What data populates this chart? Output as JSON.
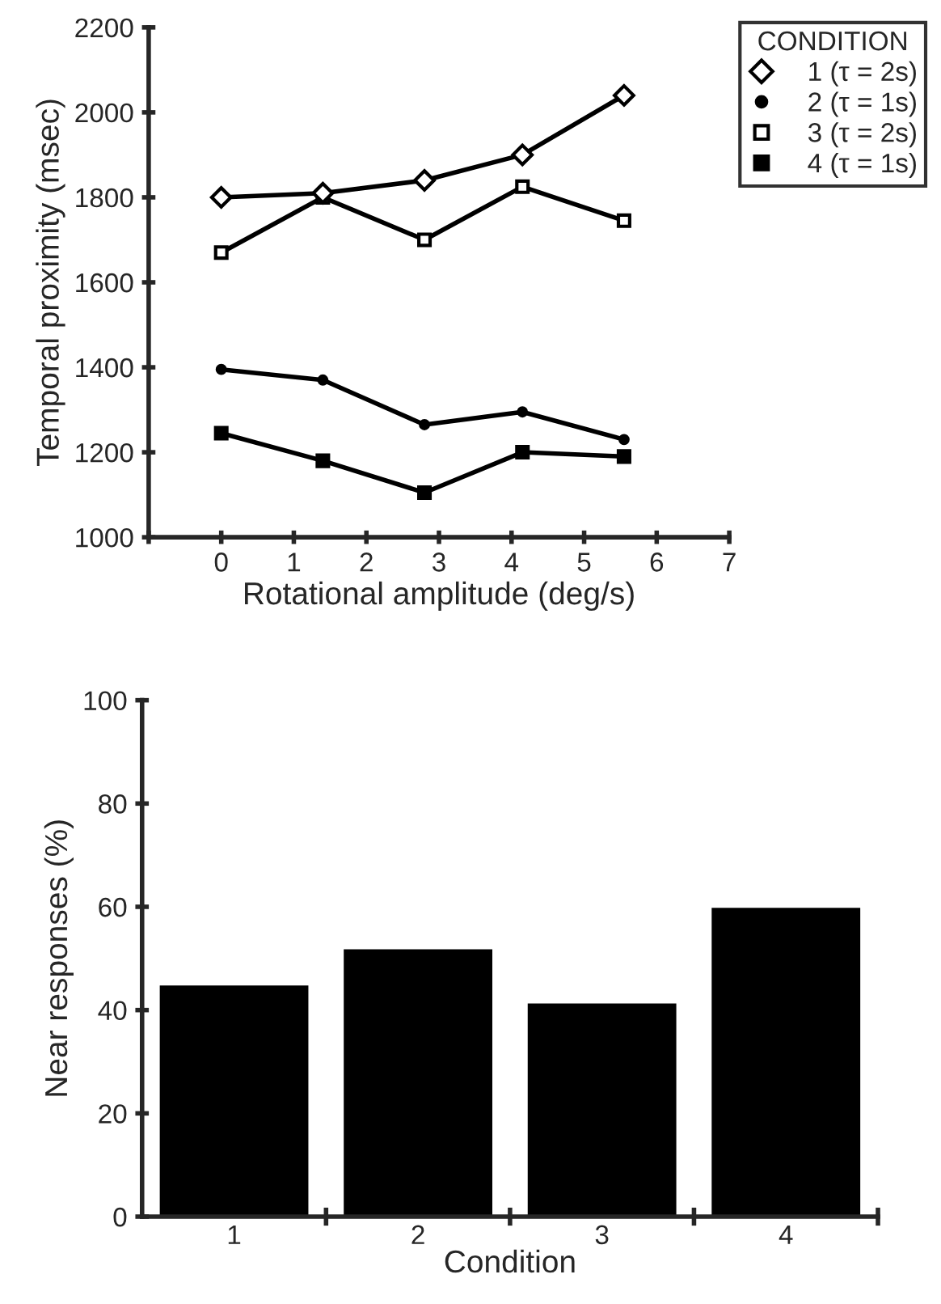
{
  "chart_data": [
    {
      "type": "line",
      "xlabel": "Rotational amplitude (deg/s)",
      "ylabel": "Temporal proximity (msec)",
      "legend_title": "CONDITION",
      "legend": "top right",
      "xlim": [
        -1,
        7
      ],
      "xticks": [
        {
          "value": -1,
          "label": null
        },
        0,
        1,
        2,
        3,
        4,
        5,
        6,
        7
      ],
      "ylim": [
        1000,
        2200
      ],
      "yticks": [
        1000,
        1200,
        1400,
        1600,
        1800,
        2000,
        2200
      ],
      "grid": false,
      "line_style": "solid",
      "series": [
        {
          "name": "1 (τ = 2s)",
          "color": "#000000",
          "marker": "diamond",
          "x": [
            0,
            1.4,
            2.8,
            4.15,
            5.55
          ],
          "values": [
            1800,
            1810,
            1840,
            1900,
            2040
          ]
        },
        {
          "name": "2 (τ = 1s)",
          "color": "#000000",
          "marker": "circle",
          "x": [
            0,
            1.4,
            2.8,
            4.15,
            5.55
          ],
          "values": [
            1395,
            1370,
            1265,
            1295,
            1230
          ]
        },
        {
          "name": "3 (τ = 2s)",
          "color": "#000000",
          "marker": "square",
          "x": [
            0,
            1.4,
            2.8,
            4.15,
            5.55
          ],
          "values": [
            1670,
            1800,
            1700,
            1825,
            1745
          ]
        },
        {
          "name": "4 (τ = 1s)",
          "color": "#000000",
          "marker": "square",
          "x": [
            0,
            1.4,
            2.8,
            4.15,
            5.55
          ],
          "values": [
            1245,
            1180,
            1105,
            1200,
            1190
          ]
        }
      ]
    },
    {
      "type": "bar",
      "xlabel": "Condition",
      "ylabel": "Near responses (%)",
      "categories": [
        "1",
        "2",
        "3",
        "4"
      ],
      "values": [
        45,
        52,
        41.5,
        60
      ],
      "color": "#000000",
      "ylim": [
        0,
        100
      ],
      "yticks": [
        0,
        20,
        40,
        60,
        80,
        100
      ],
      "grid": false,
      "legend": false
    }
  ]
}
